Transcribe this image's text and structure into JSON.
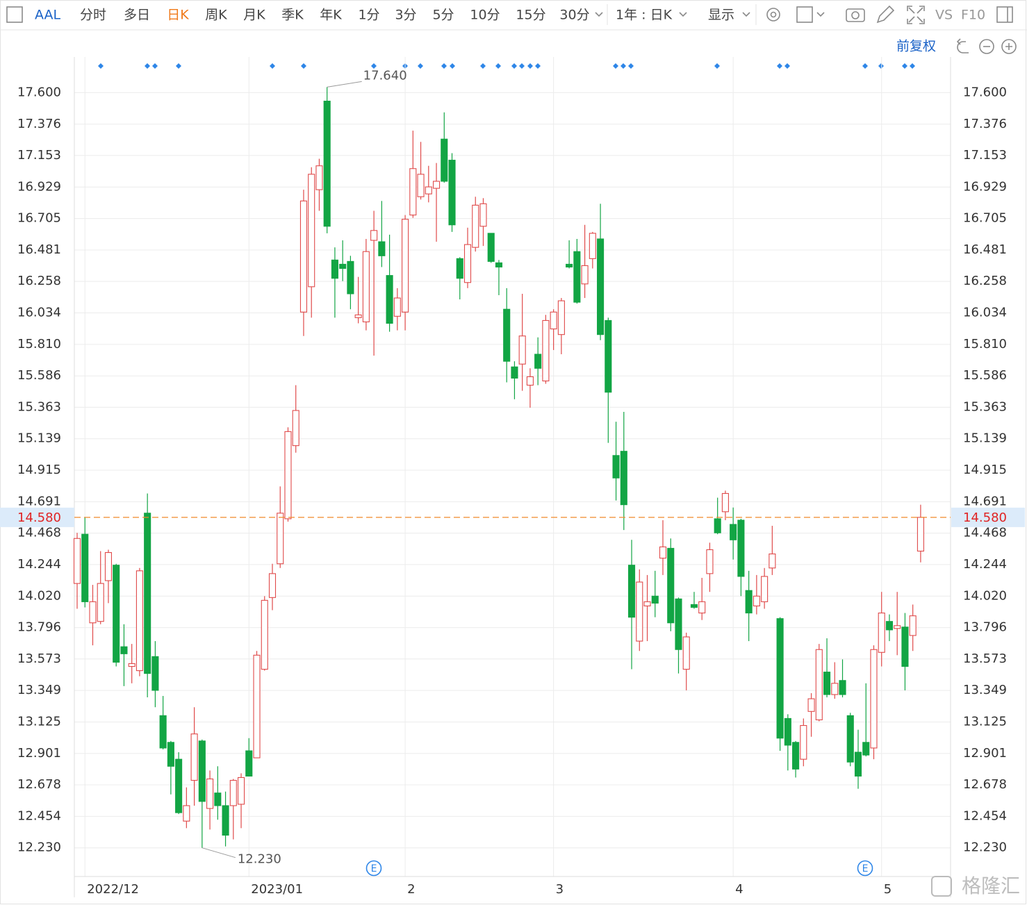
{
  "toolbar": {
    "symbol": "AAL",
    "periods": [
      "分时",
      "多日",
      "日K",
      "周K",
      "月K",
      "季K",
      "年K",
      "1分",
      "3分",
      "5分",
      "10分",
      "15分",
      "30分"
    ],
    "range": "1年 : 日K",
    "display": "显示",
    "vs": "VS",
    "f10": "F10",
    "adjust": "前复权"
  },
  "chart_data": {
    "type": "candlestick",
    "categories": [
      null,
      "2022/12",
      null,
      null,
      null,
      null,
      null,
      null,
      null,
      null,
      null,
      null,
      null,
      null,
      null,
      null,
      null,
      null,
      null,
      null,
      null,
      null,
      "2023/01",
      null,
      null,
      null,
      null,
      null,
      null,
      null,
      null,
      null,
      null,
      null,
      null,
      null,
      null,
      null,
      null,
      null,
      null,
      null,
      "2",
      null,
      null,
      null,
      null,
      null,
      null,
      null,
      null,
      null,
      null,
      null,
      null,
      null,
      null,
      null,
      null,
      null,
      null,
      "3",
      null,
      null,
      null,
      null,
      null,
      null,
      null,
      null,
      null,
      null,
      null,
      null,
      null,
      null,
      null,
      null,
      null,
      null,
      null,
      null,
      null,
      null,
      "4",
      null,
      null,
      null,
      null,
      null,
      null,
      null,
      null,
      null,
      null,
      null,
      null,
      null,
      null,
      null,
      null,
      null,
      null,
      "5",
      null,
      null,
      null,
      null,
      null
    ],
    "open": [
      14.11,
      14.46,
      13.83,
      13.84,
      14.13,
      14.24,
      13.66,
      13.52,
      13.49,
      14.61,
      13.59,
      13.17,
      12.98,
      12.86,
      12.42,
      12.71,
      12.99,
      12.51,
      12.62,
      12.53,
      12.53,
      12.54,
      12.92,
      12.87,
      13.5,
      14.01,
      14.25,
      14.57,
      15.09,
      16.04,
      16.22,
      16.91,
      17.54,
      16.41,
      16.38,
      16.4,
      16.0,
      15.97,
      16.55,
      16.54,
      16.3,
      16.01,
      16.04,
      16.73,
      16.86,
      16.88,
      16.92,
      17.27,
      17.12,
      16.42,
      16.25,
      16.5,
      16.65,
      16.6,
      16.39,
      16.06,
      15.65,
      15.67,
      15.52,
      15.74,
      15.55,
      15.92,
      15.88,
      16.38,
      16.47,
      16.24,
      16.42,
      16.56,
      15.98,
      15.02,
      15.05,
      14.24,
      13.7,
      13.95,
      14.02,
      14.29,
      14.36,
      14.0,
      13.5,
      13.96,
      13.9,
      14.18,
      14.57,
      14.62,
      14.53,
      14.56,
      14.06,
      13.95,
      13.98,
      14.22,
      13.86,
      13.15,
      12.98,
      12.86,
      13.2,
      13.14,
      13.48,
      13.32,
      13.42,
      13.17,
      12.91,
      12.98,
      12.94,
      13.62,
      13.84,
      13.79,
      13.8,
      13.74,
      14.34
    ],
    "high": [
      14.47,
      14.58,
      14.1,
      14.34,
      14.35,
      14.25,
      13.82,
      13.68,
      14.22,
      14.75,
      13.7,
      13.31,
      12.99,
      12.91,
      12.66,
      13.23,
      13.0,
      12.78,
      12.81,
      12.63,
      12.72,
      12.76,
      13.01,
      13.63,
      14.02,
      14.25,
      14.8,
      15.22,
      15.52,
      16.91,
      17.07,
      17.13,
      17.64,
      16.5,
      16.55,
      16.44,
      16.29,
      16.56,
      16.76,
      16.83,
      16.59,
      16.21,
      16.73,
      17.33,
      17.25,
      17.08,
      17.1,
      17.46,
      17.17,
      16.43,
      16.64,
      16.86,
      16.85,
      16.6,
      16.41,
      16.21,
      15.69,
      16.17,
      15.64,
      15.86,
      16.02,
      16.06,
      16.14,
      16.55,
      16.56,
      16.66,
      16.61,
      16.81,
      16.0,
      15.26,
      15.33,
      14.42,
      14.21,
      14.17,
      14.2,
      14.56,
      14.43,
      14.01,
      13.76,
      14.05,
      14.15,
      14.4,
      14.72,
      14.77,
      14.65,
      14.57,
      14.2,
      14.17,
      14.22,
      14.52,
      13.87,
      13.18,
      12.99,
      13.15,
      13.33,
      13.68,
      13.72,
      13.55,
      13.57,
      13.19,
      13.07,
      13.4,
      13.67,
      14.05,
      13.89,
      14.05,
      13.9,
      13.96,
      14.67
    ],
    "low": [
      13.93,
      13.94,
      13.67,
      13.82,
      13.97,
      13.52,
      13.38,
      13.4,
      13.45,
      13.3,
      13.23,
      12.93,
      12.61,
      12.47,
      12.37,
      12.53,
      12.23,
      12.36,
      12.43,
      12.24,
      12.29,
      12.37,
      12.74,
      12.87,
      13.49,
      13.92,
      14.22,
      14.55,
      15.04,
      15.87,
      16.0,
      16.76,
      16.6,
      16.0,
      16.26,
      16.06,
      15.96,
      15.91,
      15.73,
      16.36,
      15.9,
      15.91,
      15.91,
      16.71,
      16.84,
      16.82,
      16.54,
      16.96,
      16.61,
      16.13,
      16.21,
      16.47,
      16.51,
      16.39,
      16.16,
      15.54,
      15.42,
      15.48,
      15.36,
      15.52,
      15.53,
      15.77,
      15.74,
      16.35,
      16.1,
      16.14,
      16.35,
      15.84,
      15.11,
      14.7,
      14.49,
      13.5,
      13.63,
      13.7,
      13.87,
      14.17,
      13.77,
      13.47,
      13.35,
      13.93,
      13.85,
      14.05,
      14.46,
      14.56,
      14.28,
      14.02,
      13.7,
      13.89,
      13.93,
      14.17,
      12.92,
      12.78,
      12.73,
      12.81,
      13.02,
      13.13,
      13.3,
      13.29,
      13.3,
      12.81,
      12.65,
      12.88,
      12.86,
      13.52,
      13.7,
      13.6,
      13.35,
      13.63,
      14.26
    ],
    "close": [
      14.43,
      13.98,
      13.98,
      14.11,
      14.33,
      13.55,
      13.61,
      13.54,
      14.2,
      13.47,
      13.35,
      12.94,
      12.81,
      12.48,
      12.53,
      13.04,
      12.56,
      12.72,
      12.53,
      12.32,
      12.71,
      12.73,
      12.74,
      13.6,
      13.99,
      14.18,
      14.61,
      15.19,
      15.34,
      16.83,
      17.02,
      17.08,
      16.65,
      16.28,
      16.35,
      16.17,
      16.02,
      16.47,
      16.62,
      16.44,
      15.96,
      16.14,
      16.7,
      17.06,
      17.02,
      16.93,
      16.97,
      16.97,
      16.66,
      16.28,
      16.52,
      16.8,
      16.81,
      16.4,
      16.36,
      15.69,
      15.57,
      15.87,
      15.58,
      15.64,
      15.98,
      16.04,
      16.12,
      16.36,
      16.11,
      16.37,
      16.6,
      15.88,
      15.47,
      14.86,
      14.67,
      13.87,
      14.12,
      13.98,
      13.97,
      14.37,
      13.83,
      13.64,
      13.73,
      13.94,
      13.98,
      14.35,
      14.47,
      14.75,
      14.42,
      14.16,
      13.9,
      14.02,
      14.16,
      14.32,
      13.01,
      12.96,
      12.79,
      13.1,
      13.29,
      13.64,
      13.32,
      13.4,
      13.32,
      12.84,
      12.74,
      12.89,
      13.64,
      13.9,
      13.78,
      13.81,
      13.52,
      13.88,
      14.58
    ],
    "up_color": "#e04a4a",
    "down_color": "#12a544",
    "ylim": [
      12.026,
      17.854
    ],
    "yticks": [
      {
        "value": 12.23,
        "label": "12.230"
      },
      12.454,
      12.678,
      12.901,
      13.125,
      13.349,
      13.573,
      13.796,
      {
        "value": 14.02,
        "label": "14.020"
      },
      14.244,
      14.468,
      14.691,
      14.915,
      15.139,
      15.363,
      15.586,
      {
        "value": 15.81,
        "label": "15.810"
      },
      16.034,
      16.258,
      16.481,
      16.705,
      16.929,
      17.153,
      17.376,
      {
        "value": 17.6,
        "label": "17.600"
      }
    ],
    "grid": true,
    "last_price": {
      "value": 14.58,
      "label": "14.580"
    },
    "max_label": {
      "value": 17.64,
      "label": "17.640"
    },
    "min_label": {
      "value": 12.23,
      "label": "12.230"
    },
    "event_label": "E"
  },
  "watermark": "格隆汇"
}
